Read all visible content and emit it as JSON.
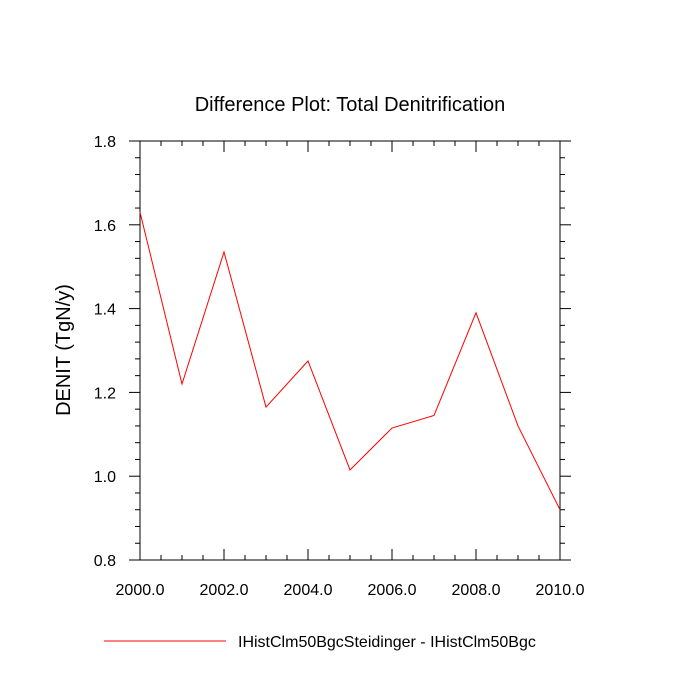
{
  "chart_data": {
    "type": "line",
    "title": "Difference Plot: Total Denitrification",
    "ylabel": "DENIT  (TgN/y)",
    "xlabel": "",
    "xlim": [
      2000,
      2010
    ],
    "ylim": [
      0.8,
      1.8
    ],
    "x_ticks": [
      "2000.0",
      "2002.0",
      "2004.0",
      "2006.0",
      "2008.0",
      "2010.0"
    ],
    "y_ticks": [
      "0.8",
      "1.0",
      "1.2",
      "1.4",
      "1.6",
      "1.8"
    ],
    "x": [
      2000,
      2001,
      2002,
      2003,
      2004,
      2005,
      2006,
      2007,
      2008,
      2009,
      2010
    ],
    "series": [
      {
        "name": "IHistClm50BgcSteidinger - IHistClm50Bgc",
        "color": "#ff0000",
        "values": [
          1.63,
          1.22,
          1.535,
          1.165,
          1.275,
          1.015,
          1.115,
          1.145,
          1.39,
          1.12,
          0.92
        ]
      }
    ],
    "grid": false,
    "legend_position": "bottom"
  }
}
